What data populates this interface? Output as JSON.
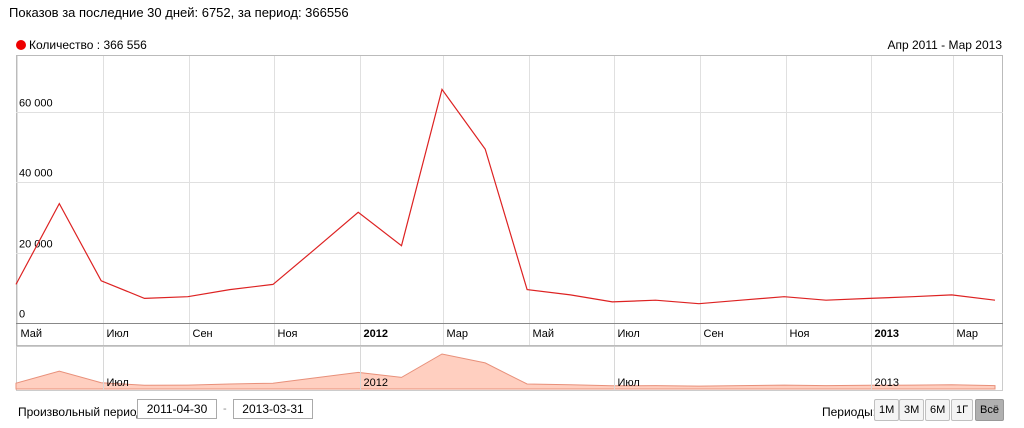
{
  "header": {
    "summary": "Показов за последние 30 дней: 6752, за период: 366556"
  },
  "legend": {
    "label": "Количество : 366 556",
    "color": "#ee0000"
  },
  "range_label": "Апр 2011 - Мар 2013",
  "chart_data": {
    "type": "line",
    "series": [
      {
        "name": "Количество",
        "color": "#dd2222",
        "points": [
          [
            "2011-04-30",
            11000
          ],
          [
            "2011-05-31",
            34000
          ],
          [
            "2011-06-30",
            12000
          ],
          [
            "2011-07-31",
            7000
          ],
          [
            "2011-08-31",
            7500
          ],
          [
            "2011-09-30",
            9500
          ],
          [
            "2011-10-31",
            11000
          ],
          [
            "2011-11-30",
            21000
          ],
          [
            "2011-12-31",
            31500
          ],
          [
            "2012-01-31",
            22000
          ],
          [
            "2012-02-29",
            66500
          ],
          [
            "2012-03-31",
            49500
          ],
          [
            "2012-04-30",
            9500
          ],
          [
            "2012-05-31",
            8000
          ],
          [
            "2012-06-30",
            6000
          ],
          [
            "2012-07-31",
            6500
          ],
          [
            "2012-08-31",
            5500
          ],
          [
            "2012-09-30",
            6500
          ],
          [
            "2012-10-31",
            7500
          ],
          [
            "2012-11-30",
            6500
          ],
          [
            "2012-12-31",
            7000
          ],
          [
            "2013-01-31",
            7500
          ],
          [
            "2013-02-28",
            8000
          ],
          [
            "2013-03-31",
            6500
          ]
        ]
      }
    ],
    "y_ticks": [
      "0",
      "20 000",
      "40 000",
      "60 000"
    ],
    "ylim": [
      0,
      76000
    ],
    "x_ticks": [
      {
        "date": "2011-05-01",
        "label": "Май",
        "bold": false
      },
      {
        "date": "2011-07-01",
        "label": "Июл",
        "bold": false
      },
      {
        "date": "2011-09-01",
        "label": "Сен",
        "bold": false
      },
      {
        "date": "2011-11-01",
        "label": "Ноя",
        "bold": false
      },
      {
        "date": "2012-01-01",
        "label": "2012",
        "bold": true
      },
      {
        "date": "2012-03-01",
        "label": "Мар",
        "bold": false
      },
      {
        "date": "2012-05-01",
        "label": "Май",
        "bold": false
      },
      {
        "date": "2012-07-01",
        "label": "Июл",
        "bold": false
      },
      {
        "date": "2012-09-01",
        "label": "Сен",
        "bold": false
      },
      {
        "date": "2012-11-01",
        "label": "Ноя",
        "bold": false
      },
      {
        "date": "2013-01-01",
        "label": "2013",
        "bold": true
      },
      {
        "date": "2013-03-01",
        "label": "Мар",
        "bold": false
      }
    ],
    "navigator_ticks": [
      {
        "date": "2011-07-01",
        "label": "Июл"
      },
      {
        "date": "2012-01-01",
        "label": "2012"
      },
      {
        "date": "2012-07-01",
        "label": "Июл"
      },
      {
        "date": "2013-01-01",
        "label": "2013"
      }
    ],
    "navigator_fill": "#ffcfc0",
    "navigator_stroke": "#e8907a",
    "grid": true
  },
  "controls": {
    "custom_period_label": "Произвольный период:",
    "date_from": "2011-04-30",
    "date_separator": "-",
    "date_to": "2013-03-31",
    "periods_label": "Периоды:",
    "period_buttons": [
      {
        "label": "1М",
        "active": false
      },
      {
        "label": "3М",
        "active": false
      },
      {
        "label": "6М",
        "active": false
      },
      {
        "label": "1Г",
        "active": false
      },
      {
        "label": "Всё",
        "active": true
      }
    ]
  }
}
